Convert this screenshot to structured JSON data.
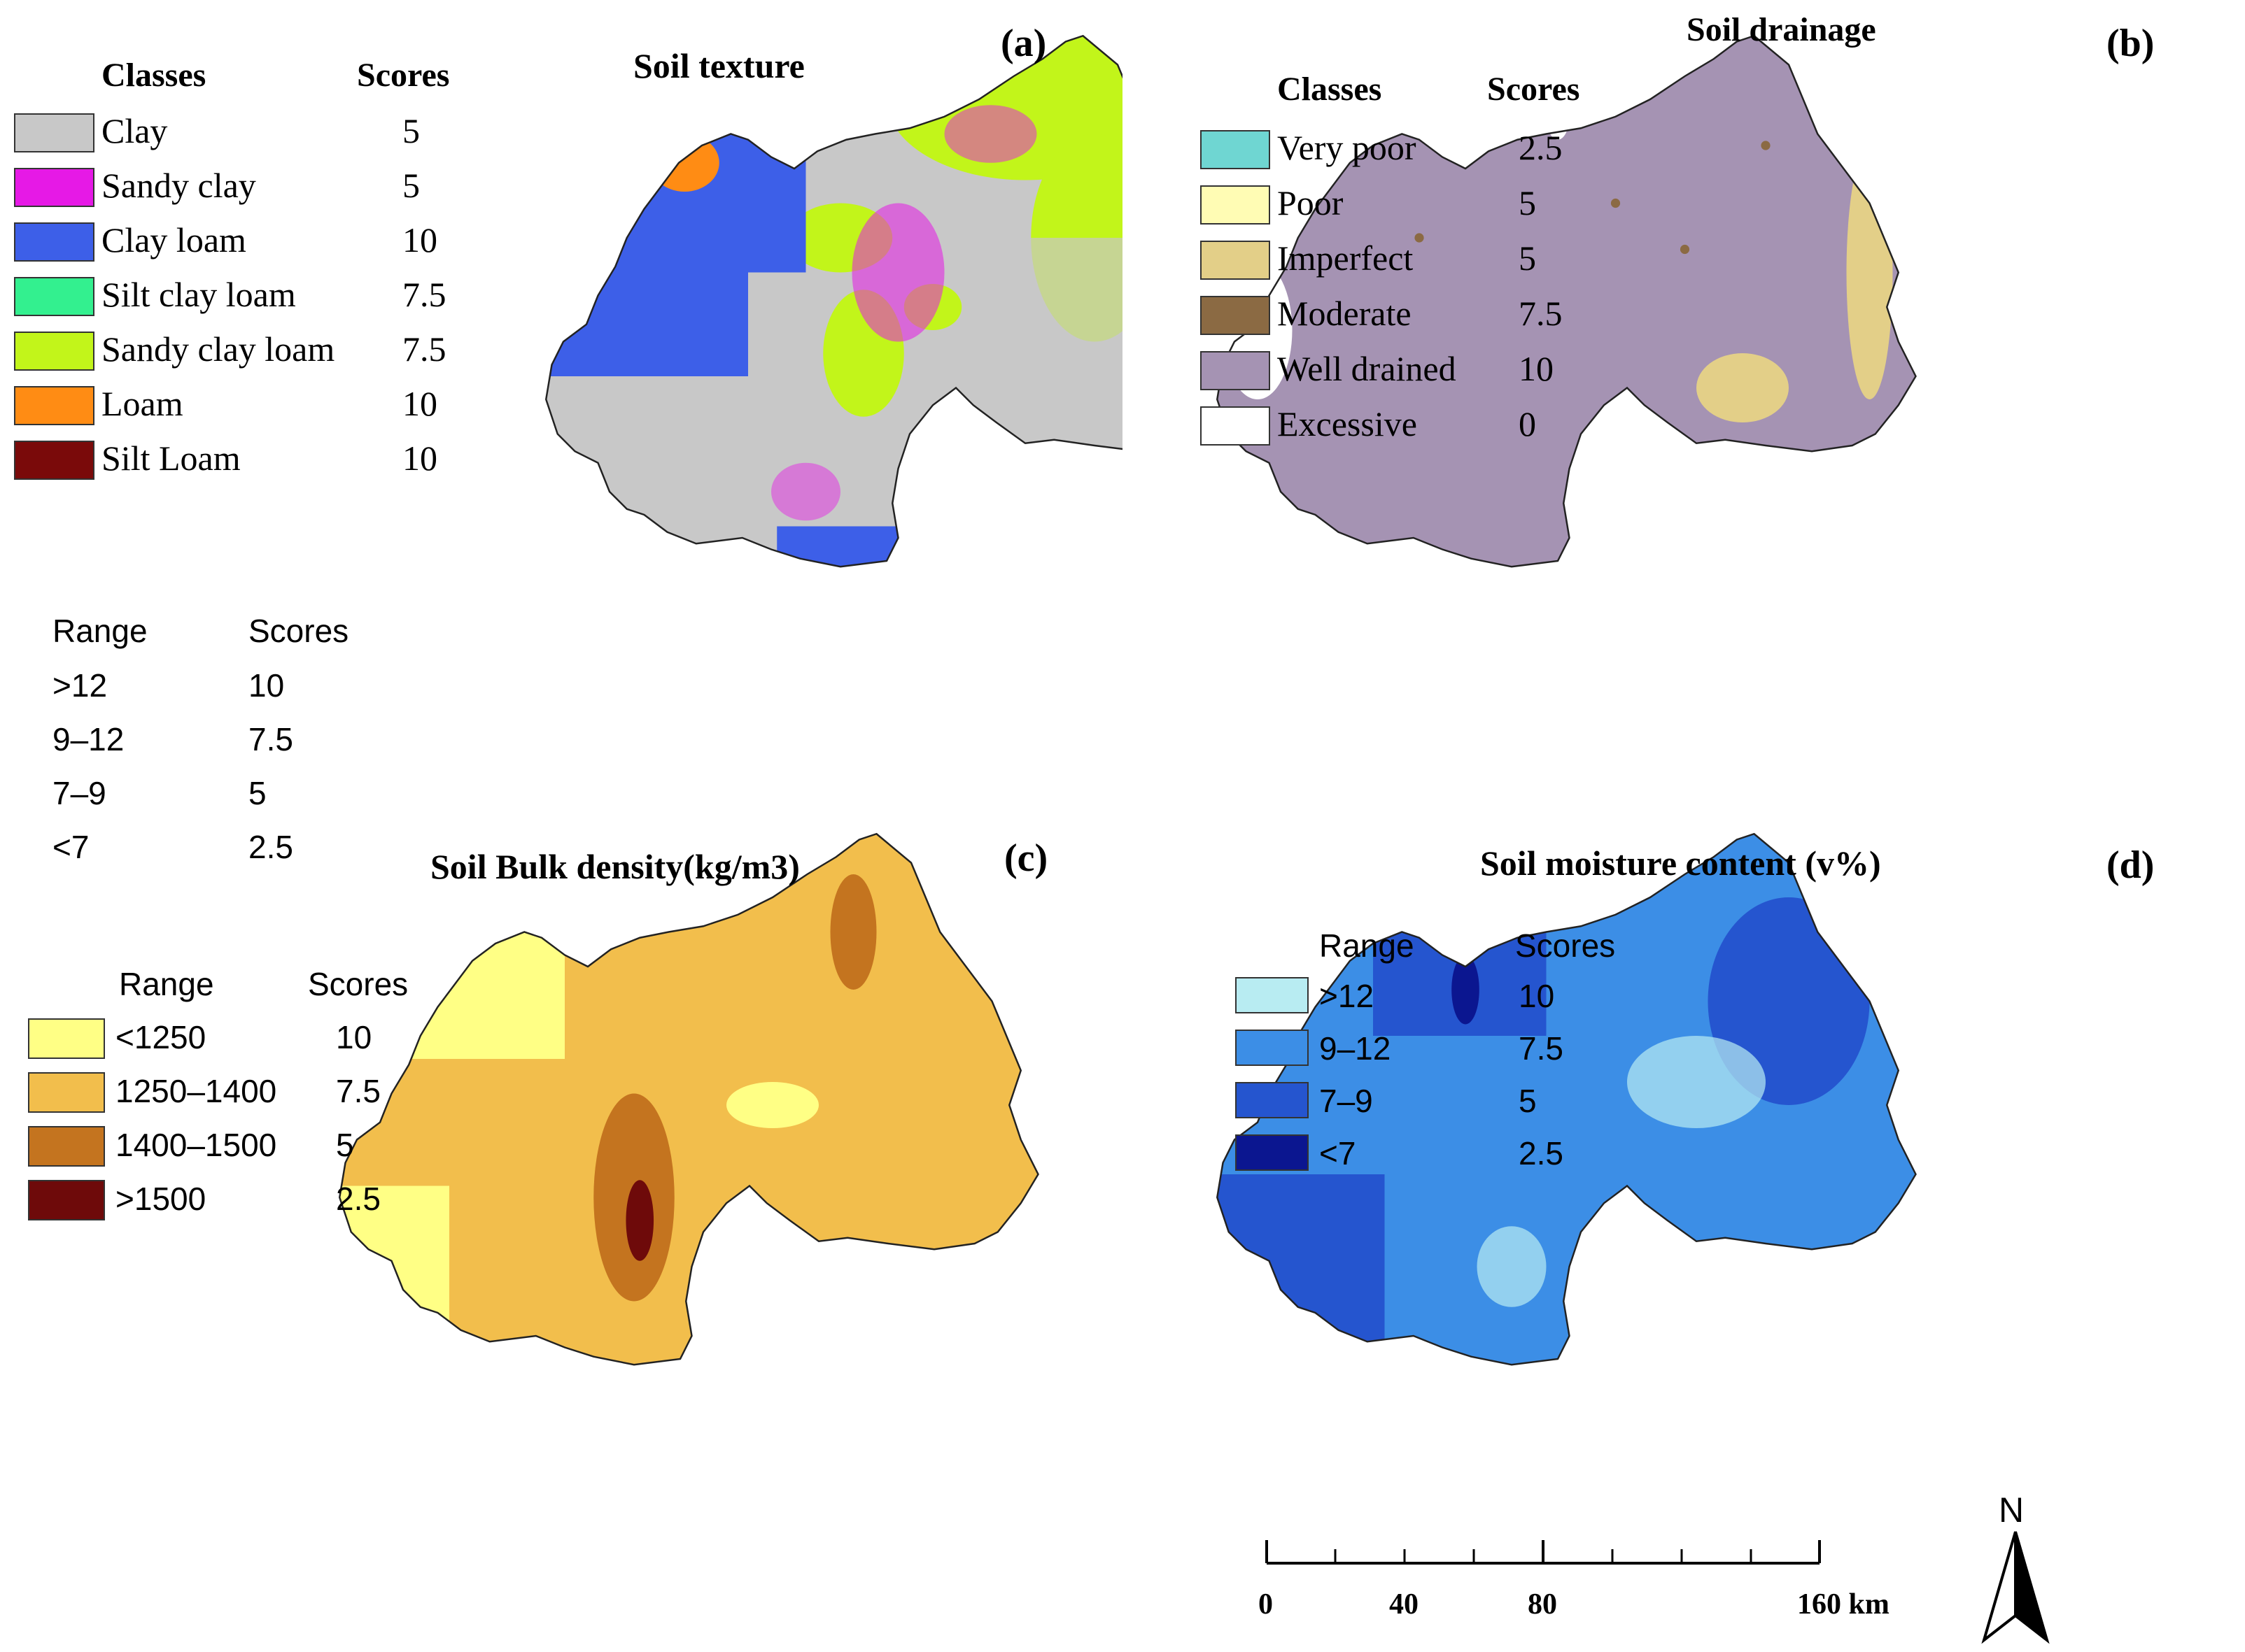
{
  "panels": {
    "a": {
      "tag": "(a)",
      "title": "Soil texture",
      "legend": {
        "header_classes": "Classes",
        "header_scores": "Scores",
        "items": [
          {
            "label": "Clay",
            "score": "5",
            "color": "#c8c8c8"
          },
          {
            "label": "Sandy clay",
            "score": "5",
            "color": "#e619e6"
          },
          {
            "label": "Clay loam",
            "score": "10",
            "color": "#3d5fe8"
          },
          {
            "label": "Silt clay loam",
            "score": "7.5",
            "color": "#33f08f"
          },
          {
            "label": "Sandy clay loam",
            "score": "7.5",
            "color": "#c2f51a"
          },
          {
            "label": "Loam",
            "score": "10",
            "color": "#ff8c14"
          },
          {
            "label": "Silt Loam",
            "score": "10",
            "color": "#7a0a0a"
          }
        ]
      }
    },
    "b": {
      "tag": "(b)",
      "title": "Soil drainage",
      "legend": {
        "header_classes": "Classes",
        "header_scores": "Scores",
        "items": [
          {
            "label": "Very poor",
            "score": "2.5",
            "color": "#6fd6d2"
          },
          {
            "label": "Poor",
            "score": "5",
            "color": "#fffcb4"
          },
          {
            "label": "Imperfect",
            "score": "5",
            "color": "#e3cf88"
          },
          {
            "label": "Moderate",
            "score": "7.5",
            "color": "#8b6a43"
          },
          {
            "label": "Well drained",
            "score": "10",
            "color": "#a593b3"
          },
          {
            "label": "Excessive",
            "score": "0",
            "color": "#ffffff"
          }
        ]
      }
    },
    "c": {
      "tag": "(c)",
      "title": "Soil Bulk density(kg/m3)",
      "legend": {
        "header_range": "Range",
        "header_scores": "Scores",
        "items": [
          {
            "label": "<1250",
            "score": "10",
            "color": "#ffff85"
          },
          {
            "label": "1250–1400",
            "score": "7.5",
            "color": "#f2be4c"
          },
          {
            "label": "1400–1500",
            "score": "5",
            "color": "#c4741f"
          },
          {
            "label": ">1500",
            "score": "2.5",
            "color": "#6e0a0a"
          }
        ]
      }
    },
    "d": {
      "tag": "(d)",
      "title": "Soil moisture content (v%)",
      "legend": {
        "header_range": "Range",
        "header_scores": "Scores",
        "items": [
          {
            "label": ">12",
            "score": "10",
            "color": "#b8ecf2"
          },
          {
            "label": "9–12",
            "score": "7.5",
            "color": "#3c8ee6"
          },
          {
            "label": "7–9",
            "score": "5",
            "color": "#2555cf"
          },
          {
            "label": "<7",
            "score": "2.5",
            "color": "#0b1690"
          }
        ]
      }
    }
  },
  "extra_table": {
    "header_range": "Range",
    "header_scores": "Scores",
    "rows": [
      {
        "range": ">12",
        "score": "10"
      },
      {
        "range": "9–12",
        "score": "7.5"
      },
      {
        "range": "7–9",
        "score": "5"
      },
      {
        "range": "<7",
        "score": "2.5"
      }
    ]
  },
  "scale_bar": {
    "labels": [
      "0",
      "40",
      "80",
      "160 km"
    ]
  },
  "north_arrow": {
    "label": "N"
  }
}
